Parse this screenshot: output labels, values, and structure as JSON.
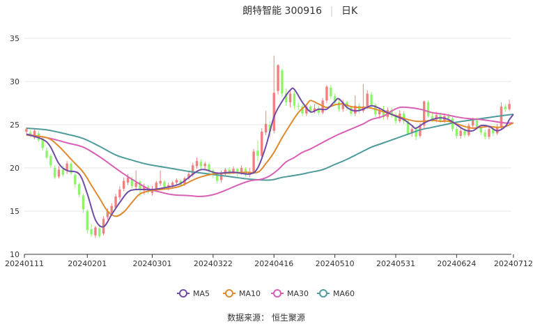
{
  "title": {
    "name": "朗特智能 300916",
    "period": "日K"
  },
  "source": "数据来源： 恒生聚源",
  "colors": {
    "up": "#f07f7f",
    "down": "#8ef56a",
    "grid": "#e6e6e6",
    "axis": "#333333",
    "ma5": "#6f4ba6",
    "ma10": "#e0892d",
    "ma30": "#d95fb5",
    "ma60": "#4f9b9b"
  },
  "chart_data": {
    "type": "candlestick",
    "y_ticks": [
      10,
      15,
      20,
      25,
      30,
      35
    ],
    "ylim": [
      10,
      35
    ],
    "x_tick_labels": [
      "20240111",
      "20240201",
      "20240301",
      "20240322",
      "20240416",
      "20240510",
      "20240531",
      "20240624",
      "20240712"
    ],
    "x_tick_indices": [
      0,
      15,
      31,
      46,
      61,
      76,
      91,
      106,
      120
    ],
    "legend": [
      {
        "key": "ma5",
        "label": "MA5"
      },
      {
        "key": "ma10",
        "label": "MA10"
      },
      {
        "key": "ma30",
        "label": "MA30"
      },
      {
        "key": "ma60",
        "label": "MA60"
      }
    ],
    "candles": [
      [
        24.2,
        24.5,
        24.7,
        24.0
      ],
      [
        24.1,
        23.8,
        24.4,
        23.5
      ],
      [
        23.5,
        24.3,
        24.6,
        23.3
      ],
      [
        24.0,
        23.2,
        24.3,
        23.0
      ],
      [
        23.4,
        22.3,
        23.6,
        22.0
      ],
      [
        22.0,
        21.2,
        22.4,
        21.0
      ],
      [
        21.4,
        20.3,
        21.6,
        20.0
      ],
      [
        20.0,
        18.9,
        20.3,
        18.7
      ],
      [
        19.0,
        19.8,
        20.2,
        18.8
      ],
      [
        19.8,
        19.2,
        20.3,
        19.0
      ],
      [
        19.7,
        20.5,
        20.8,
        19.3
      ],
      [
        20.5,
        19.4,
        20.7,
        19.2
      ],
      [
        19.2,
        18.1,
        19.4,
        17.7
      ],
      [
        18.1,
        16.9,
        18.3,
        16.6
      ],
      [
        16.8,
        15.2,
        17.0,
        14.8
      ],
      [
        15.0,
        12.8,
        15.2,
        12.4
      ],
      [
        12.9,
        12.3,
        13.5,
        12.0
      ],
      [
        12.2,
        13.1,
        13.3,
        11.9
      ],
      [
        13.0,
        12.1,
        13.4,
        11.9
      ],
      [
        12.4,
        14.1,
        14.4,
        12.2
      ],
      [
        14.3,
        15.0,
        15.3,
        14.0
      ],
      [
        14.8,
        15.6,
        15.9,
        14.6
      ],
      [
        15.4,
        16.7,
        17.0,
        15.2
      ],
      [
        16.6,
        17.5,
        17.9,
        16.3
      ],
      [
        17.6,
        18.5,
        18.9,
        17.3
      ],
      [
        18.3,
        18.9,
        19.3,
        18.0
      ],
      [
        18.7,
        17.9,
        19.0,
        17.6
      ],
      [
        17.8,
        18.3,
        19.7,
        17.5
      ],
      [
        18.4,
        17.5,
        18.6,
        16.7
      ],
      [
        17.4,
        17.9,
        18.2,
        16.9
      ],
      [
        17.8,
        17.3,
        18.0,
        17.0
      ],
      [
        17.1,
        17.6,
        17.9,
        16.8
      ],
      [
        17.5,
        18.3,
        18.5,
        17.3
      ],
      [
        18.2,
        18.5,
        19.7,
        17.9
      ],
      [
        18.4,
        17.8,
        18.6,
        17.6
      ],
      [
        17.7,
        18.0,
        18.3,
        17.4
      ],
      [
        18.0,
        18.3,
        18.5,
        17.6
      ],
      [
        18.3,
        18.6,
        18.8,
        18.0
      ],
      [
        18.5,
        18.0,
        18.7,
        17.8
      ],
      [
        18.1,
        18.8,
        19.0,
        17.9
      ],
      [
        18.8,
        19.3,
        19.6,
        18.6
      ],
      [
        19.2,
        20.3,
        20.6,
        19.0
      ],
      [
        20.2,
        20.8,
        21.2,
        19.9
      ],
      [
        20.7,
        20.2,
        21.0,
        19.8
      ],
      [
        20.2,
        20.5,
        20.7,
        19.8
      ],
      [
        20.4,
        19.7,
        20.6,
        19.4
      ],
      [
        19.7,
        19.2,
        19.9,
        18.8
      ],
      [
        19.1,
        18.5,
        19.4,
        18.2
      ],
      [
        18.6,
        19.4,
        19.7,
        18.3
      ],
      [
        19.3,
        19.8,
        20.0,
        19.1
      ],
      [
        19.8,
        19.5,
        20.1,
        19.2
      ],
      [
        19.5,
        19.9,
        20.2,
        19.3
      ],
      [
        19.9,
        19.4,
        20.0,
        19.0
      ],
      [
        19.4,
        20.0,
        20.3,
        19.2
      ],
      [
        19.9,
        19.3,
        20.1,
        19.0
      ],
      [
        19.2,
        19.5,
        20.0,
        18.9
      ],
      [
        19.5,
        21.9,
        22.2,
        19.3
      ],
      [
        22.0,
        21.4,
        23.2,
        20.8
      ],
      [
        21.4,
        24.2,
        24.6,
        21.1
      ],
      [
        24.1,
        25.1,
        26.6,
        23.8
      ],
      [
        25.0,
        24.2,
        25.4,
        23.5
      ],
      [
        24.3,
        28.7,
        33.0,
        24.0
      ],
      [
        28.9,
        31.9,
        32.0,
        28.5
      ],
      [
        31.3,
        28.6,
        31.5,
        28.2
      ],
      [
        28.6,
        27.6,
        29.2,
        27.2
      ],
      [
        27.6,
        28.6,
        29.0,
        27.0
      ],
      [
        28.6,
        27.2,
        28.9,
        26.8
      ],
      [
        27.2,
        27.1,
        27.6,
        26.7
      ],
      [
        27.1,
        26.3,
        27.3,
        26.0
      ],
      [
        26.3,
        27.1,
        27.4,
        26.0
      ],
      [
        27.1,
        26.6,
        27.3,
        26.3
      ],
      [
        26.6,
        26.9,
        27.4,
        26.3
      ],
      [
        26.9,
        26.4,
        27.2,
        26.1
      ],
      [
        26.4,
        27.8,
        28.1,
        26.2
      ],
      [
        27.8,
        29.4,
        29.6,
        27.5
      ],
      [
        29.3,
        28.3,
        29.6,
        28.0
      ],
      [
        28.3,
        27.6,
        28.6,
        27.2
      ],
      [
        27.6,
        26.8,
        27.9,
        26.5
      ],
      [
        26.8,
        27.6,
        27.9,
        26.5
      ],
      [
        27.6,
        27.1,
        27.8,
        26.7
      ],
      [
        27.0,
        26.3,
        27.2,
        26.0
      ],
      [
        26.3,
        27.2,
        28.4,
        26.0
      ],
      [
        27.2,
        26.6,
        27.5,
        26.3
      ],
      [
        26.6,
        27.1,
        29.7,
        26.4
      ],
      [
        27.1,
        28.6,
        29.0,
        26.8
      ],
      [
        28.5,
        27.3,
        28.8,
        27.0
      ],
      [
        27.3,
        26.2,
        27.5,
        25.9
      ],
      [
        26.2,
        26.6,
        27.0,
        25.7
      ],
      [
        26.6,
        25.9,
        27.2,
        25.6
      ],
      [
        25.9,
        26.7,
        27.0,
        25.6
      ],
      [
        26.7,
        26.1,
        27.0,
        25.8
      ],
      [
        26.1,
        25.4,
        26.4,
        25.1
      ],
      [
        25.4,
        26.3,
        26.7,
        25.2
      ],
      [
        26.3,
        25.4,
        26.6,
        25.1
      ],
      [
        25.4,
        24.0,
        25.6,
        23.8
      ],
      [
        24.0,
        24.5,
        24.8,
        23.6
      ],
      [
        24.5,
        23.6,
        24.8,
        23.2
      ],
      [
        23.7,
        24.9,
        25.2,
        23.5
      ],
      [
        24.9,
        27.7,
        27.8,
        24.6
      ],
      [
        27.6,
        26.0,
        27.8,
        25.8
      ],
      [
        26.0,
        25.6,
        26.4,
        25.3
      ],
      [
        25.6,
        26.1,
        26.5,
        25.3
      ],
      [
        26.1,
        25.5,
        26.4,
        25.2
      ],
      [
        25.5,
        26.0,
        26.3,
        25.2
      ],
      [
        26.0,
        25.7,
        26.3,
        25.4
      ],
      [
        25.7,
        24.5,
        25.9,
        24.2
      ],
      [
        24.5,
        23.7,
        24.8,
        23.4
      ],
      [
        23.7,
        24.3,
        24.6,
        23.4
      ],
      [
        24.3,
        23.8,
        24.6,
        23.5
      ],
      [
        23.8,
        24.9,
        25.2,
        23.6
      ],
      [
        24.9,
        25.5,
        25.8,
        24.6
      ],
      [
        25.5,
        24.7,
        25.8,
        24.4
      ],
      [
        24.7,
        24.1,
        25.0,
        23.8
      ],
      [
        24.1,
        23.6,
        24.4,
        23.3
      ],
      [
        23.6,
        24.5,
        24.9,
        23.3
      ],
      [
        24.5,
        24.0,
        24.8,
        23.7
      ],
      [
        24.0,
        24.7,
        25.1,
        23.8
      ],
      [
        24.7,
        27.1,
        27.6,
        24.5
      ],
      [
        27.1,
        26.8,
        27.4,
        26.5
      ],
      [
        26.8,
        27.4,
        27.9,
        26.6
      ]
    ],
    "ma_lines": {
      "ma5": [
        [
          0,
          23.9
        ],
        [
          5,
          23.0
        ],
        [
          8,
          20.5
        ],
        [
          10,
          19.7
        ],
        [
          13,
          19.3
        ],
        [
          15,
          17.0
        ],
        [
          17,
          14.0
        ],
        [
          19,
          13.2
        ],
        [
          21,
          14.6
        ],
        [
          23,
          16.0
        ],
        [
          25,
          17.2
        ],
        [
          27,
          17.5
        ],
        [
          31,
          17.5
        ],
        [
          35,
          17.8
        ],
        [
          38,
          18.2
        ],
        [
          42,
          19.6
        ],
        [
          44,
          19.8
        ],
        [
          47,
          19.4
        ],
        [
          51,
          19.5
        ],
        [
          55,
          19.3
        ],
        [
          57,
          20.0
        ],
        [
          59,
          22.5
        ],
        [
          61,
          25.9
        ],
        [
          63,
          27.7
        ],
        [
          65,
          29.0
        ],
        [
          66,
          29.1
        ],
        [
          68,
          27.6
        ],
        [
          70,
          26.5
        ],
        [
          72,
          26.8
        ],
        [
          74,
          26.8
        ],
        [
          76,
          27.7
        ],
        [
          77,
          28.0
        ],
        [
          79,
          27.0
        ],
        [
          81,
          26.6
        ],
        [
          83,
          26.8
        ],
        [
          85,
          27.2
        ],
        [
          87,
          26.9
        ],
        [
          89,
          26.4
        ],
        [
          91,
          26.0
        ],
        [
          93,
          25.6
        ],
        [
          95,
          24.9
        ],
        [
          96,
          24.6
        ],
        [
          98,
          25.2
        ],
        [
          100,
          25.6
        ],
        [
          102,
          25.8
        ],
        [
          104,
          25.6
        ],
        [
          106,
          25.0
        ],
        [
          108,
          24.4
        ],
        [
          110,
          24.3
        ],
        [
          112,
          24.9
        ],
        [
          114,
          24.8
        ],
        [
          116,
          24.3
        ],
        [
          118,
          24.8
        ],
        [
          119,
          25.6
        ],
        [
          120,
          26.2
        ]
      ],
      "ma10": [
        [
          0,
          23.8
        ],
        [
          5,
          23.5
        ],
        [
          8,
          22.5
        ],
        [
          11,
          21.0
        ],
        [
          14,
          19.5
        ],
        [
          16,
          18.0
        ],
        [
          18,
          16.5
        ],
        [
          20,
          15.0
        ],
        [
          22,
          14.4
        ],
        [
          24,
          14.9
        ],
        [
          26,
          16.0
        ],
        [
          28,
          17.0
        ],
        [
          31,
          17.4
        ],
        [
          35,
          17.6
        ],
        [
          38,
          17.9
        ],
        [
          42,
          18.8
        ],
        [
          46,
          19.3
        ],
        [
          50,
          19.4
        ],
        [
          54,
          19.5
        ],
        [
          57,
          19.5
        ],
        [
          59,
          20.5
        ],
        [
          61,
          21.8
        ],
        [
          63,
          23.5
        ],
        [
          65,
          25.0
        ],
        [
          67,
          26.4
        ],
        [
          69,
          27.3
        ],
        [
          70,
          27.8
        ],
        [
          72,
          27.4
        ],
        [
          74,
          27.0
        ],
        [
          76,
          27.3
        ],
        [
          78,
          27.4
        ],
        [
          80,
          27.1
        ],
        [
          82,
          27.0
        ],
        [
          84,
          27.0
        ],
        [
          86,
          26.8
        ],
        [
          88,
          26.5
        ],
        [
          90,
          26.2
        ],
        [
          92,
          25.9
        ],
        [
          94,
          25.6
        ],
        [
          96,
          25.4
        ],
        [
          98,
          25.4
        ],
        [
          100,
          25.5
        ],
        [
          102,
          25.4
        ],
        [
          104,
          25.4
        ],
        [
          106,
          25.1
        ],
        [
          108,
          24.8
        ],
        [
          110,
          24.6
        ],
        [
          112,
          24.7
        ],
        [
          114,
          24.8
        ],
        [
          116,
          24.7
        ],
        [
          118,
          24.8
        ],
        [
          120,
          25.2
        ]
      ],
      "ma30": [
        [
          0,
          23.9
        ],
        [
          6,
          23.4
        ],
        [
          10,
          22.9
        ],
        [
          14,
          22.4
        ],
        [
          18,
          21.3
        ],
        [
          21,
          20.3
        ],
        [
          24,
          19.3
        ],
        [
          27,
          18.4
        ],
        [
          30,
          17.6
        ],
        [
          33,
          17.2
        ],
        [
          36,
          16.9
        ],
        [
          40,
          16.8
        ],
        [
          43,
          16.7
        ],
        [
          46,
          16.9
        ],
        [
          49,
          17.4
        ],
        [
          52,
          18.0
        ],
        [
          55,
          18.5
        ],
        [
          58,
          18.7
        ],
        [
          60,
          19.1
        ],
        [
          62,
          19.8
        ],
        [
          64,
          20.7
        ],
        [
          66,
          21.2
        ],
        [
          68,
          21.8
        ],
        [
          70,
          22.2
        ],
        [
          72,
          22.7
        ],
        [
          74,
          23.2
        ],
        [
          77,
          23.9
        ],
        [
          80,
          24.5
        ],
        [
          83,
          25.1
        ],
        [
          85,
          25.6
        ],
        [
          88,
          26.0
        ],
        [
          90,
          26.6
        ],
        [
          92,
          27.0
        ],
        [
          94,
          27.0
        ],
        [
          97,
          26.8
        ],
        [
          100,
          26.4
        ],
        [
          103,
          26.2
        ],
        [
          106,
          25.9
        ],
        [
          109,
          25.7
        ],
        [
          112,
          25.6
        ],
        [
          115,
          25.4
        ],
        [
          118,
          25.2
        ],
        [
          120,
          25.2
        ]
      ],
      "ma60": [
        [
          0,
          24.6
        ],
        [
          5,
          24.4
        ],
        [
          10,
          23.9
        ],
        [
          14,
          23.4
        ],
        [
          18,
          22.5
        ],
        [
          22,
          21.5
        ],
        [
          26,
          20.9
        ],
        [
          30,
          20.4
        ],
        [
          35,
          20.0
        ],
        [
          40,
          19.6
        ],
        [
          45,
          19.3
        ],
        [
          50,
          19.0
        ],
        [
          55,
          18.7
        ],
        [
          60,
          18.6
        ],
        [
          63,
          18.9
        ],
        [
          67,
          19.2
        ],
        [
          70,
          19.5
        ],
        [
          73,
          19.8
        ],
        [
          76,
          20.4
        ],
        [
          79,
          21.0
        ],
        [
          82,
          21.7
        ],
        [
          85,
          22.4
        ],
        [
          88,
          22.9
        ],
        [
          91,
          23.4
        ],
        [
          94,
          23.9
        ],
        [
          97,
          24.4
        ],
        [
          100,
          24.7
        ],
        [
          103,
          25.0
        ],
        [
          106,
          25.3
        ],
        [
          109,
          25.5
        ],
        [
          112,
          25.7
        ],
        [
          115,
          25.9
        ],
        [
          118,
          26.1
        ],
        [
          120,
          26.2
        ]
      ]
    }
  }
}
